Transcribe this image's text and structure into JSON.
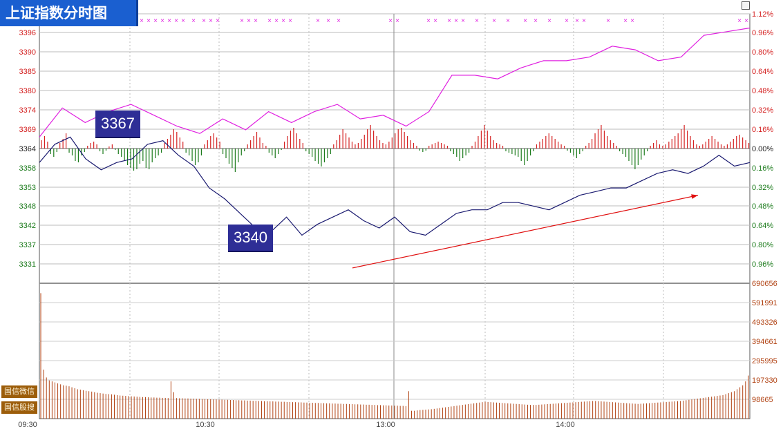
{
  "title": "上证指数分时图",
  "price_axis": [
    "3396",
    "3390",
    "3385",
    "3380",
    "3374",
    "3369",
    "3364",
    "3358",
    "3353",
    "3348",
    "3342",
    "3337",
    "3331"
  ],
  "pct_axis": [
    "1.12%",
    "0.96%",
    "0.80%",
    "0.64%",
    "0.48%",
    "0.32%",
    "0.16%",
    "0.00%",
    "0.16%",
    "0.32%",
    "0.48%",
    "0.64%",
    "0.80%",
    "0.96%"
  ],
  "volume_axis": [
    "690656",
    "591991",
    "493326",
    "394661",
    "295995",
    "197330",
    "98665"
  ],
  "time_axis": [
    "09:30",
    "10:30",
    "13:00",
    "14:00"
  ],
  "callouts": {
    "high": "3367",
    "low": "3340"
  },
  "side_tabs": [
    "国信微信",
    "国信股搜"
  ],
  "colors": {
    "up": "#d42020",
    "down": "#1a7a1a",
    "price_line": "#1a1a70",
    "avg_line": "#e020e0",
    "volume": "#b04010",
    "arrow": "#e01010"
  },
  "chart_data": {
    "type": "line",
    "x_range": [
      "09:30",
      "15:00"
    ],
    "prev_close": 3364,
    "ylim": [
      3327.8,
      3401.9
    ],
    "series": [
      {
        "values": [
          3361,
          3366,
          3368,
          3362,
          3359,
          3361,
          3362,
          3366,
          3367,
          3363,
          3360,
          3354,
          3351,
          3347,
          3343,
          3342,
          3346,
          3341,
          3344,
          3346,
          3348,
          3345,
          3343,
          3346,
          3342,
          3341,
          3344,
          3347,
          3348,
          3348,
          3350,
          3350,
          3349,
          3348,
          3350,
          3352,
          3353,
          3354,
          3354,
          3356,
          3358,
          3359,
          3358,
          3360,
          3363,
          3360,
          3361
        ]
      },
      {
        "values": [
          3368,
          3376,
          3372,
          3375,
          3377,
          3374,
          3371,
          3369,
          3373,
          3370,
          3375,
          3372,
          3375,
          3377,
          3373,
          3374,
          3371,
          3375,
          3385,
          3385,
          3384,
          3387,
          3389,
          3389,
          3390,
          3393,
          3392,
          3389,
          3390,
          3396,
          3397,
          3398
        ]
      }
    ],
    "volume": {
      "ylim": [
        0,
        690656
      ],
      "values": [
        640000,
        250000,
        210000,
        195000,
        190000,
        185000,
        180000,
        175000,
        170000,
        168000,
        165000,
        160000,
        155000,
        150000,
        148000,
        145000,
        142000,
        140000,
        138000,
        135000,
        132000,
        130000,
        128000,
        126000,
        125000,
        124000,
        122000,
        120000,
        118000,
        117000,
        116000,
        115000,
        114000,
        113000,
        112000,
        111000,
        110000,
        110000,
        109000,
        108000,
        108000,
        107000,
        107000,
        106000,
        106000,
        105000,
        190000,
        135000,
        105000,
        104000,
        104000,
        103000,
        103000,
        102000,
        102000,
        101000,
        101000,
        100000,
        100000,
        99000,
        99000,
        98000,
        98000,
        97000,
        97000,
        96000,
        96000,
        95000,
        95000,
        94000,
        94000,
        93000,
        93000,
        92000,
        92000,
        91000,
        91000,
        90000,
        90000,
        89000,
        89000,
        88000,
        88000,
        87000,
        87000,
        86000,
        86000,
        85000,
        85000,
        84000,
        84000,
        83000,
        83000,
        82000,
        82000,
        81000,
        81000,
        80000,
        80000,
        79000,
        79000,
        78000,
        78000,
        77000,
        77000,
        76000,
        76000,
        75000,
        75000,
        74000,
        74000,
        73000,
        73000,
        72000,
        72000,
        71000,
        71000,
        70000,
        70000,
        69000,
        69000,
        68000,
        68000,
        67000,
        67000,
        66000,
        66000,
        65000,
        65000,
        64000,
        140000,
        40000,
        40000,
        42000,
        44000,
        45000,
        46000,
        47000,
        48000,
        50000,
        52000,
        54000,
        56000,
        58000,
        60000,
        62000,
        64000,
        66000,
        68000,
        70000,
        72000,
        74000,
        76000,
        78000,
        80000,
        82000,
        84000,
        86000,
        85000,
        84000,
        83000,
        82000,
        81000,
        80000,
        79000,
        78000,
        77000,
        76000,
        75000,
        74000,
        73000,
        72000,
        71000,
        70000,
        70000,
        70000,
        71000,
        72000,
        73000,
        74000,
        75000,
        76000,
        77000,
        78000,
        79000,
        80000,
        81000,
        82000,
        83000,
        84000,
        85000,
        86000,
        87000,
        88000,
        89000,
        90000,
        90000,
        89000,
        88000,
        87000,
        86000,
        85000,
        84000,
        83000,
        82000,
        81000,
        80000,
        79000,
        78000,
        77000,
        76000,
        75000,
        76000,
        77000,
        78000,
        79000,
        80000,
        81000,
        82000,
        83000,
        84000,
        85000,
        86000,
        87000,
        88000,
        89000,
        90000,
        92000,
        94000,
        96000,
        98000,
        100000,
        102000,
        104000,
        106000,
        108000,
        110000,
        112000,
        114000,
        116000,
        118000,
        120000,
        125000,
        130000,
        135000,
        140000,
        150000,
        160000,
        170000,
        190000,
        220000
      ]
    },
    "breadth_bars": {
      "values": [
        12,
        18,
        10,
        -8,
        -12,
        -5,
        8,
        14,
        22,
        -6,
        -10,
        -18,
        -20,
        -10,
        -5,
        4,
        8,
        10,
        6,
        -4,
        -8,
        -3,
        3,
        6,
        -2,
        -8,
        -12,
        -18,
        -24,
        -28,
        -32,
        -30,
        -22,
        -18,
        -28,
        -30,
        -20,
        -14,
        -10,
        -6,
        8,
        14,
        20,
        28,
        24,
        16,
        10,
        -6,
        -10,
        -18,
        -24,
        -20,
        -10,
        6,
        12,
        18,
        22,
        16,
        10,
        -8,
        -14,
        -22,
        -28,
        -34,
        -20,
        -10,
        -4,
        6,
        12,
        18,
        24,
        16,
        8,
        4,
        -6,
        -10,
        -14,
        -8,
        -2,
        10,
        18,
        26,
        30,
        22,
        14,
        8,
        -4,
        -8,
        -12,
        -18,
        -22,
        -26,
        -20,
        -14,
        -8,
        6,
        12,
        20,
        28,
        22,
        16,
        10,
        6,
        8,
        14,
        20,
        28,
        34,
        26,
        18,
        12,
        8,
        6,
        10,
        16,
        22,
        28,
        30,
        24,
        18,
        12,
        8,
        4,
        -3,
        -5,
        -3,
        4,
        6,
        8,
        10,
        8,
        6,
        4,
        -4,
        -8,
        -12,
        -18,
        -14,
        -10,
        -6,
        4,
        10,
        18,
        26,
        34,
        26,
        18,
        12,
        8,
        6,
        4,
        -4,
        -6,
        -8,
        -10,
        -12,
        -18,
        -24,
        -18,
        -10,
        -4,
        6,
        10,
        14,
        18,
        22,
        18,
        14,
        10,
        6,
        4,
        -3,
        -6,
        -10,
        -14,
        -8,
        -4,
        4,
        8,
        14,
        22,
        28,
        34,
        26,
        18,
        12,
        8,
        4,
        -4,
        -8,
        -12,
        -18,
        -24,
        -30,
        -24,
        -16,
        -10,
        -4,
        4,
        8,
        12,
        6,
        4,
        6,
        10,
        14,
        18,
        22,
        28,
        34,
        26,
        18,
        12,
        6,
        4,
        6,
        10,
        14,
        18,
        14,
        10,
        6,
        4,
        6,
        10,
        14,
        18,
        20,
        16,
        12,
        8
      ]
    },
    "marker_row": {
      "symbol": "×"
    },
    "arrow": {
      "from": [
        "12:40",
        3332
      ],
      "to": [
        "14:45",
        3352
      ]
    }
  }
}
